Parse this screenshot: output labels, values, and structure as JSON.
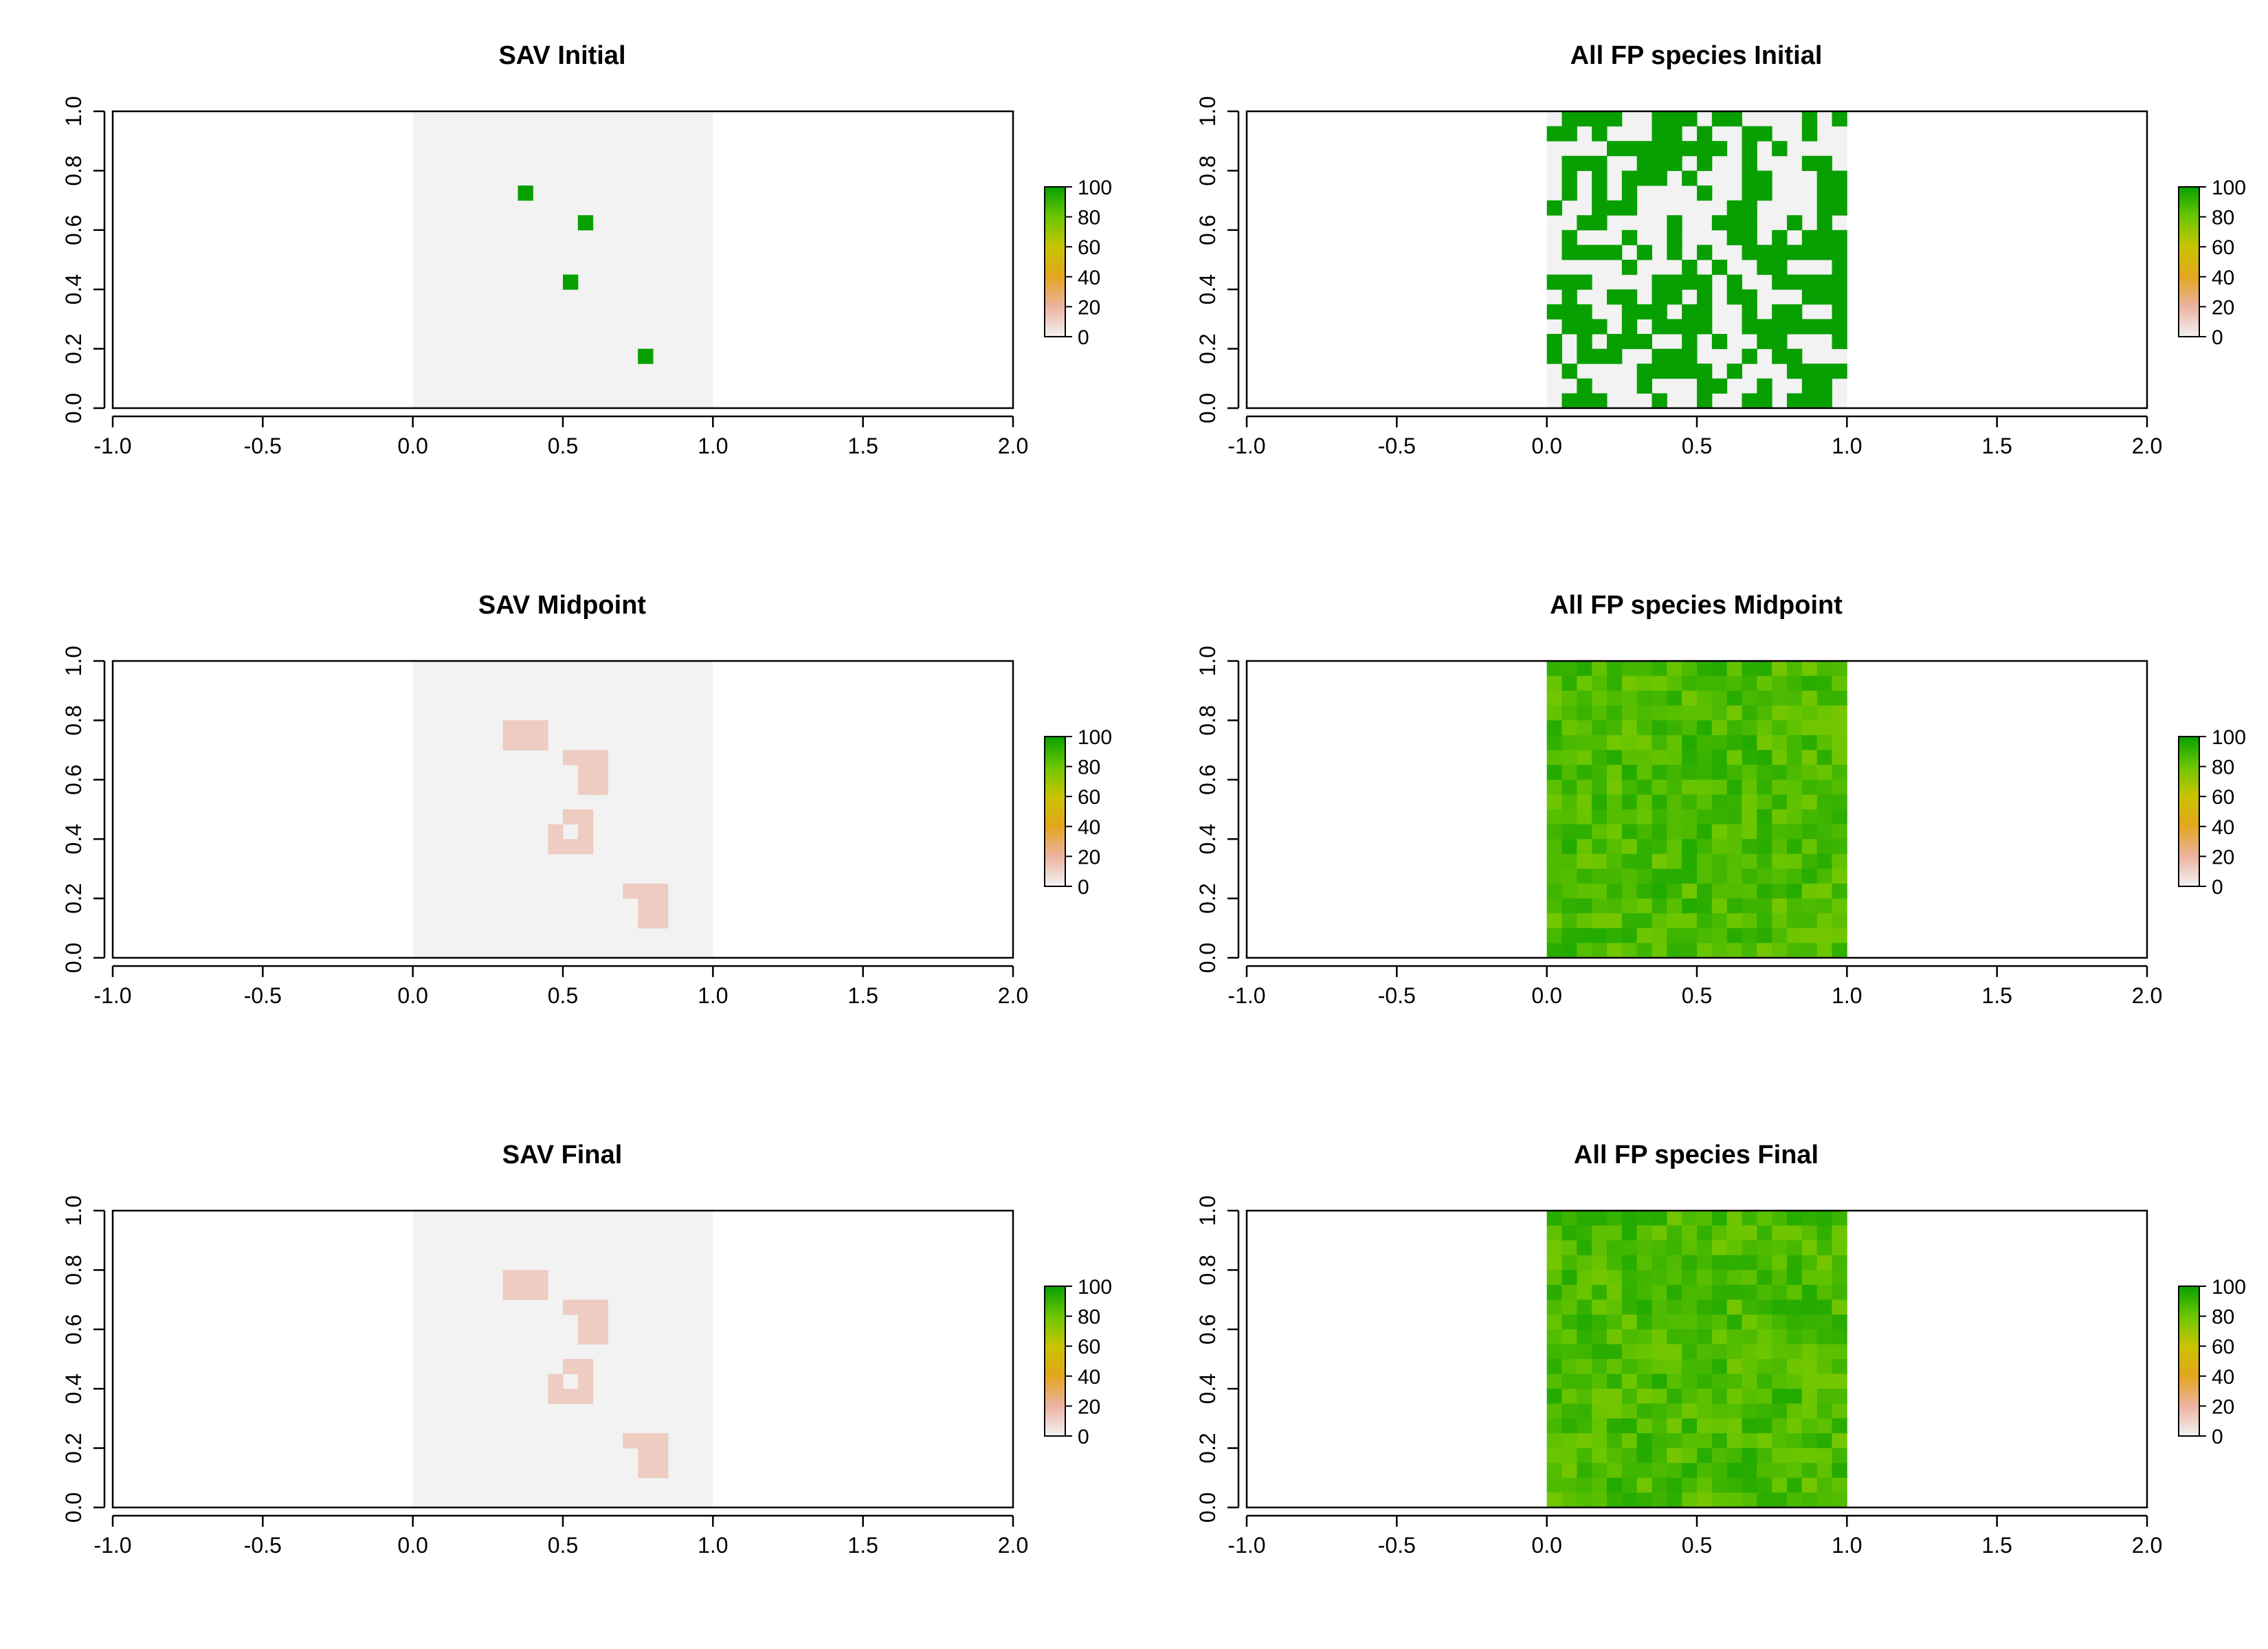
{
  "chart_data": [
    {
      "type": "heatmap",
      "title": "SAV Initial",
      "xlim": [
        -1.0,
        2.0
      ],
      "ylim": [
        0.0,
        1.0
      ],
      "x_ticks": [
        "-1.0",
        "-0.5",
        "0.0",
        "0.5",
        "1.0",
        "1.5",
        "2.0"
      ],
      "y_ticks": [
        "0.0",
        "0.2",
        "0.4",
        "0.6",
        "0.8",
        "1.0"
      ],
      "legend_ticks": [
        "0",
        "20",
        "40",
        "60",
        "80",
        "100"
      ],
      "grid_cells": 20,
      "background_extent": [
        0.0,
        1.0
      ],
      "cells_range_x": [
        0.0,
        1.0
      ],
      "cells_range_y": [
        0.0,
        1.0
      ],
      "cells": [
        [
          0.35,
          0.7,
          100
        ],
        [
          0.55,
          0.6,
          100
        ],
        [
          0.5,
          0.4,
          100
        ],
        [
          0.75,
          0.15,
          100
        ]
      ]
    },
    {
      "type": "heatmap",
      "title": "All FP species Initial",
      "xlim": [
        -1.0,
        2.0
      ],
      "ylim": [
        0.0,
        1.0
      ],
      "x_ticks": [
        "-1.0",
        "-0.5",
        "0.0",
        "0.5",
        "1.0",
        "1.5",
        "2.0"
      ],
      "y_ticks": [
        "0.0",
        "0.2",
        "0.4",
        "0.6",
        "0.8",
        "1.0"
      ],
      "legend_ticks": [
        "0",
        "20",
        "40",
        "60",
        "80",
        "100"
      ],
      "grid_cells": 20,
      "background_extent": [
        0.0,
        1.0
      ],
      "fill": "random-binary",
      "fill_value": 100,
      "fill_density": 0.5
    },
    {
      "type": "heatmap",
      "title": "SAV Midpoint",
      "xlim": [
        -1.0,
        2.0
      ],
      "ylim": [
        0.0,
        1.0
      ],
      "x_ticks": [
        "-1.0",
        "-0.5",
        "0.0",
        "0.5",
        "1.0",
        "1.5",
        "2.0"
      ],
      "y_ticks": [
        "0.0",
        "0.2",
        "0.4",
        "0.6",
        "0.8",
        "1.0"
      ],
      "legend_ticks": [
        "0",
        "20",
        "40",
        "60",
        "80",
        "100"
      ],
      "grid_cells": 20,
      "background_extent": [
        0.0,
        1.0
      ],
      "patch_value": 12,
      "patches": [
        [
          [
            0.3,
            0.75
          ],
          [
            0.35,
            0.75
          ],
          [
            0.3,
            0.7
          ],
          [
            0.35,
            0.7
          ],
          [
            0.4,
            0.7
          ],
          [
            0.4,
            0.75
          ]
        ],
        [
          [
            0.5,
            0.65
          ],
          [
            0.55,
            0.65
          ],
          [
            0.6,
            0.65
          ],
          [
            0.55,
            0.6
          ],
          [
            0.6,
            0.6
          ],
          [
            0.55,
            0.55
          ],
          [
            0.6,
            0.55
          ]
        ],
        [
          [
            0.5,
            0.45
          ],
          [
            0.55,
            0.45
          ],
          [
            0.45,
            0.4
          ],
          [
            0.55,
            0.4
          ],
          [
            0.45,
            0.35
          ],
          [
            0.5,
            0.35
          ],
          [
            0.55,
            0.35
          ]
        ],
        [
          [
            0.7,
            0.2
          ],
          [
            0.75,
            0.2
          ],
          [
            0.8,
            0.2
          ],
          [
            0.75,
            0.15
          ],
          [
            0.8,
            0.15
          ],
          [
            0.75,
            0.1
          ],
          [
            0.8,
            0.1
          ]
        ]
      ]
    },
    {
      "type": "heatmap",
      "title": "All FP species Midpoint",
      "xlim": [
        -1.0,
        2.0
      ],
      "ylim": [
        0.0,
        1.0
      ],
      "x_ticks": [
        "-1.0",
        "-0.5",
        "0.0",
        "0.5",
        "1.0",
        "1.5",
        "2.0"
      ],
      "y_ticks": [
        "0.0",
        "0.2",
        "0.4",
        "0.6",
        "0.8",
        "1.0"
      ],
      "legend_ticks": [
        "0",
        "20",
        "40",
        "60",
        "80",
        "100"
      ],
      "grid_cells": 20,
      "background_extent": [
        0.0,
        1.0
      ],
      "fill": "random-continuous",
      "fill_range": [
        78,
        95
      ]
    },
    {
      "type": "heatmap",
      "title": "SAV Final",
      "xlim": [
        -1.0,
        2.0
      ],
      "ylim": [
        0.0,
        1.0
      ],
      "x_ticks": [
        "-1.0",
        "-0.5",
        "0.0",
        "0.5",
        "1.0",
        "1.5",
        "2.0"
      ],
      "y_ticks": [
        "0.0",
        "0.2",
        "0.4",
        "0.6",
        "0.8",
        "1.0"
      ],
      "legend_ticks": [
        "0",
        "20",
        "40",
        "60",
        "80",
        "100"
      ],
      "grid_cells": 20,
      "background_extent": [
        0.0,
        1.0
      ],
      "patch_value": 12,
      "patches": [
        [
          [
            0.3,
            0.75
          ],
          [
            0.35,
            0.75
          ],
          [
            0.3,
            0.7
          ],
          [
            0.35,
            0.7
          ],
          [
            0.4,
            0.7
          ],
          [
            0.4,
            0.75
          ]
        ],
        [
          [
            0.5,
            0.65
          ],
          [
            0.55,
            0.65
          ],
          [
            0.6,
            0.65
          ],
          [
            0.55,
            0.6
          ],
          [
            0.6,
            0.6
          ],
          [
            0.55,
            0.55
          ],
          [
            0.6,
            0.55
          ]
        ],
        [
          [
            0.5,
            0.45
          ],
          [
            0.55,
            0.45
          ],
          [
            0.45,
            0.4
          ],
          [
            0.55,
            0.4
          ],
          [
            0.45,
            0.35
          ],
          [
            0.5,
            0.35
          ],
          [
            0.55,
            0.35
          ]
        ],
        [
          [
            0.7,
            0.2
          ],
          [
            0.75,
            0.2
          ],
          [
            0.8,
            0.2
          ],
          [
            0.75,
            0.15
          ],
          [
            0.8,
            0.15
          ],
          [
            0.75,
            0.1
          ],
          [
            0.8,
            0.1
          ]
        ]
      ]
    },
    {
      "type": "heatmap",
      "title": "All FP species Final",
      "xlim": [
        -1.0,
        2.0
      ],
      "ylim": [
        0.0,
        1.0
      ],
      "x_ticks": [
        "-1.0",
        "-0.5",
        "0.0",
        "0.5",
        "1.0",
        "1.5",
        "2.0"
      ],
      "y_ticks": [
        "0.0",
        "0.2",
        "0.4",
        "0.6",
        "0.8",
        "1.0"
      ],
      "legend_ticks": [
        "0",
        "20",
        "40",
        "60",
        "80",
        "100"
      ],
      "grid_cells": 20,
      "background_extent": [
        0.0,
        1.0
      ],
      "fill": "random-continuous",
      "fill_range": [
        78,
        95
      ]
    }
  ],
  "colors": {
    "background_cell": "#f2f2f2",
    "scale_0": "#f2f2f2",
    "scale_20": "#ecb3a1",
    "scale_40": "#e3a51f",
    "scale_60": "#c9c400",
    "scale_80": "#6cc600",
    "scale_100": "#08a000"
  }
}
